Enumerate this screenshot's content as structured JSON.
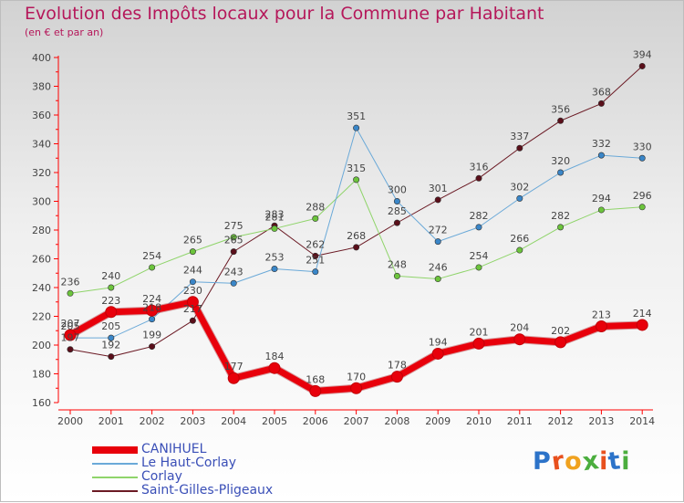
{
  "header": {
    "title": "Evolution des Impôts locaux pour la Commune par Habitant",
    "subtitle": "(en € et par an)"
  },
  "logo": {
    "text": "Proxiti",
    "colors": [
      "#2c73c9",
      "#e8501e",
      "#f0a21f",
      "#4bae3e",
      "#e8501e",
      "#2c73c9",
      "#4bae3e"
    ]
  },
  "chart_data": {
    "type": "line",
    "ylim": [
      160,
      400
    ],
    "yticks": [
      160,
      180,
      200,
      220,
      240,
      260,
      280,
      300,
      320,
      340,
      360,
      380,
      400
    ],
    "x": [
      "2000",
      "2001",
      "2002",
      "2003",
      "2004",
      "2005",
      "2006",
      "2007",
      "2008",
      "2009",
      "2010",
      "2011",
      "2012",
      "2013",
      "2014"
    ],
    "grid": false,
    "legend_position": "bottom-left",
    "series": [
      {
        "name": "Saint-Gilles-Pligeaux",
        "color": "#6b1a24",
        "marker": "#5a0f1a",
        "width": 1,
        "values": [
          197,
          192,
          199,
          217,
          265,
          283,
          262,
          268,
          285,
          301,
          316,
          337,
          356,
          368,
          394
        ]
      },
      {
        "name": "Corlay",
        "color": "#8fd46a",
        "marker": "#6cc43c",
        "width": 1,
        "values": [
          236,
          240,
          254,
          265,
          275,
          281,
          288,
          315,
          248,
          246,
          254,
          266,
          282,
          294,
          296
        ]
      },
      {
        "name": "Le Haut-Corlay",
        "color": "#6aa9d8",
        "marker": "#3a86c8",
        "width": 1,
        "values": [
          205,
          205,
          218,
          244,
          243,
          253,
          251,
          351,
          300,
          272,
          282,
          302,
          320,
          332,
          330
        ]
      },
      {
        "name": "CANIHUEL",
        "color": "#e8000b",
        "marker": "#e8000b",
        "width": 7,
        "values": [
          207,
          223,
          224,
          230,
          177,
          184,
          168,
          170,
          178,
          194,
          201,
          204,
          202,
          213,
          214
        ]
      }
    ],
    "data_labels": {
      "Saint-Gilles-Pligeaux": [
        "197",
        "192",
        "199",
        "217",
        "265",
        "283",
        "262",
        "268",
        "285",
        "301",
        "316",
        "337",
        "356",
        "368",
        "394"
      ],
      "Corlay": [
        "236",
        "240",
        "254",
        "265",
        "275",
        "281",
        "288",
        "315",
        "248",
        "246",
        "254",
        "266",
        "282",
        "294",
        "296"
      ],
      "Le Haut-Corlay": [
        "205",
        "205",
        "218",
        "244",
        "243",
        "253",
        "251",
        "351",
        "300",
        "272",
        "282",
        "302",
        "320",
        "332",
        "330"
      ],
      "CANIHUEL": [
        "207",
        "223",
        "224",
        "230",
        "177",
        "184",
        "168",
        "170",
        "178",
        "194",
        "201",
        "204",
        "202",
        "213",
        "214"
      ]
    },
    "legend_order": [
      "CANIHUEL",
      "Le Haut-Corlay",
      "Corlay",
      "Saint-Gilles-Pligeaux"
    ]
  }
}
